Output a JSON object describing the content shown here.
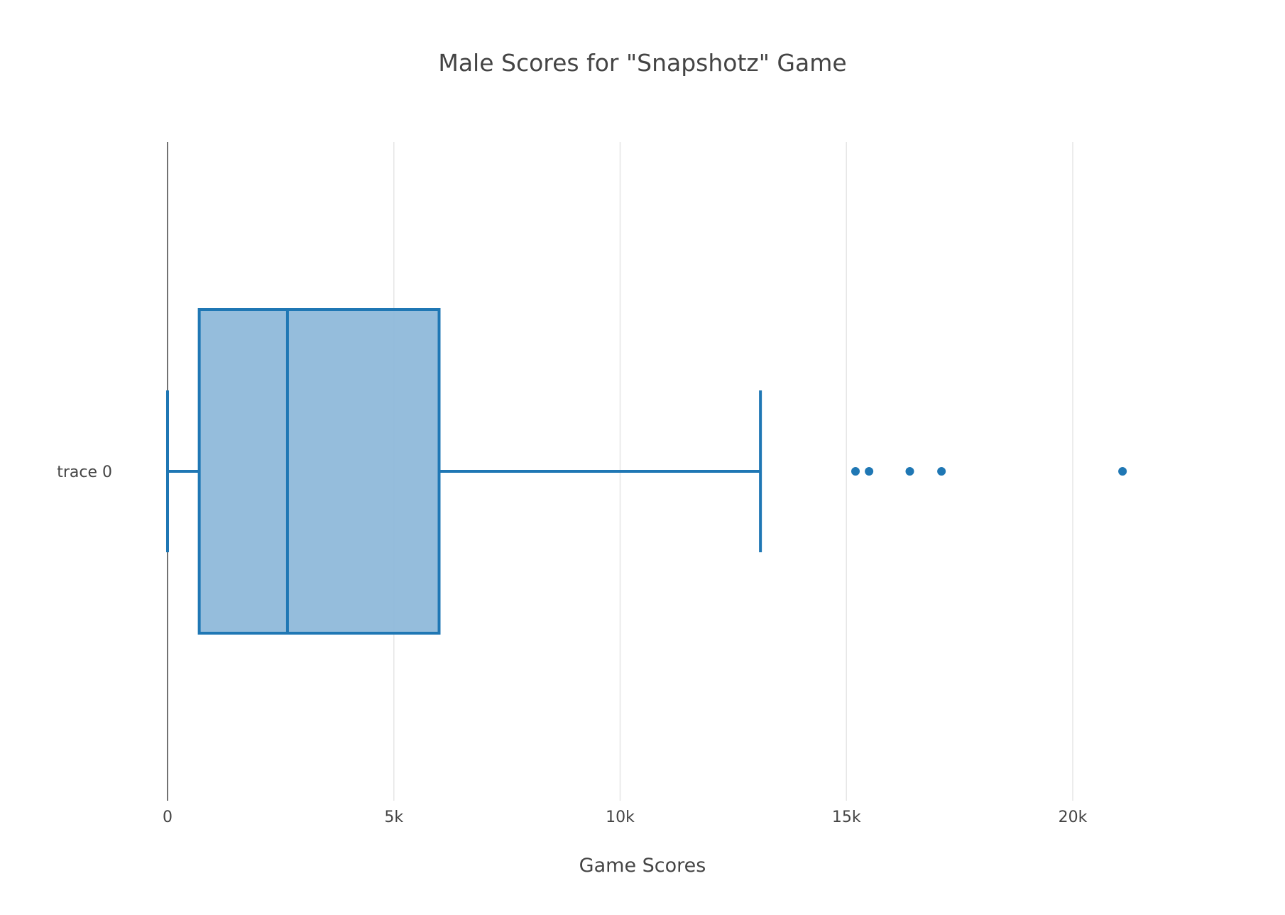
{
  "chart_data": {
    "type": "box",
    "orientation": "horizontal",
    "title": "Male  Scores for \"Snapshotz\" Game",
    "xlabel": "Game Scores",
    "ylabel": "",
    "xlim": [
      0,
      25000
    ],
    "x_ticks": [
      0,
      5000,
      10000,
      15000,
      20000
    ],
    "x_tick_labels": [
      "0",
      "5k",
      "10k",
      "15k",
      "20k"
    ],
    "grid": true,
    "legend": "none",
    "colors": {
      "box_line": "#1f77b4",
      "box_fill": "#8fb9da",
      "grid": "#e6e6e6",
      "zero_line": "#444444"
    },
    "series": [
      {
        "name": "trace 0",
        "lower_fence": 0,
        "q1": 700,
        "median": 2650,
        "q3": 6000,
        "upper_fence": 13100,
        "outliers": [
          15200,
          15500,
          16400,
          17100,
          21100
        ]
      }
    ]
  }
}
